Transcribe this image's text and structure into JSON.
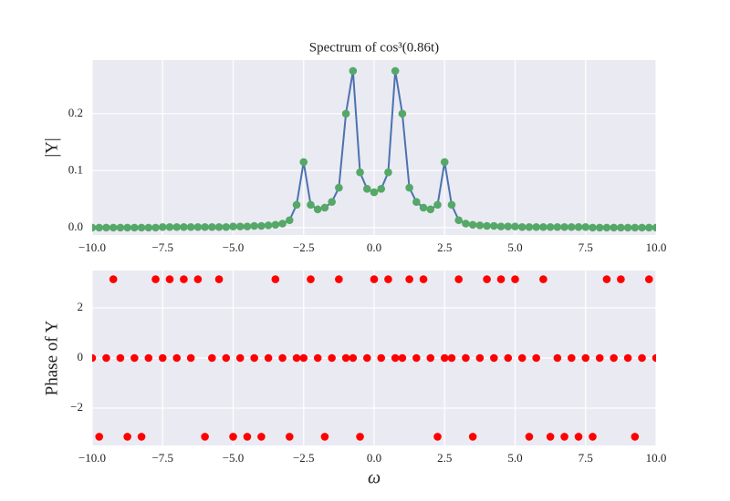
{
  "chart_data": [
    {
      "type": "line",
      "title": "Spectrum of cos³(0.86t)",
      "y_label": "|Y|",
      "x": [
        -10,
        -9.75,
        -9.5,
        -9.25,
        -9,
        -8.75,
        -8.5,
        -8.25,
        -8,
        -7.75,
        -7.5,
        -7.25,
        -7,
        -6.75,
        -6.5,
        -6.25,
        -6,
        -5.75,
        -5.5,
        -5.25,
        -5,
        -4.75,
        -4.5,
        -4.25,
        -4,
        -3.75,
        -3.5,
        -3.25,
        -3,
        -2.75,
        -2.5,
        -2.25,
        -2,
        -1.75,
        -1.5,
        -1.25,
        -1,
        -0.75,
        -0.5,
        -0.25,
        0,
        0.25,
        0.5,
        0.75,
        1,
        1.25,
        1.5,
        1.75,
        2,
        2.25,
        2.5,
        2.75,
        3,
        3.25,
        3.5,
        3.75,
        4,
        4.25,
        4.5,
        4.75,
        5,
        5.25,
        5.5,
        5.75,
        6,
        6.25,
        6.5,
        6.75,
        7,
        7.25,
        7.5,
        7.75,
        8,
        8.25,
        8.5,
        8.75,
        9,
        9.25,
        9.5,
        9.75,
        10
      ],
      "series": [
        {
          "color": "#4c72b0",
          "marker_color": "#55a868",
          "values": [
            0,
            0,
            0,
            0,
            0,
            0,
            0,
            0,
            0,
            0,
            0.001,
            0.001,
            0.001,
            0.001,
            0.001,
            0.001,
            0.001,
            0.001,
            0.001,
            0.001,
            0.002,
            0.002,
            0.002,
            0.003,
            0.003,
            0.004,
            0.005,
            0.007,
            0.013,
            0.04,
            0.115,
            0.04,
            0.032,
            0.035,
            0.045,
            0.07,
            0.2,
            0.275,
            0.097,
            0.068,
            0.062,
            0.068,
            0.097,
            0.275,
            0.2,
            0.07,
            0.045,
            0.035,
            0.032,
            0.04,
            0.115,
            0.04,
            0.013,
            0.007,
            0.005,
            0.004,
            0.003,
            0.003,
            0.002,
            0.002,
            0.002,
            0.001,
            0.001,
            0.001,
            0.001,
            0.001,
            0.001,
            0.001,
            0.001,
            0.001,
            0.001,
            0,
            0,
            0,
            0,
            0,
            0,
            0,
            0,
            0,
            0
          ]
        }
      ],
      "xlim": [
        -10,
        10
      ],
      "ylim": [
        -0.013,
        0.294
      ],
      "xticks": [
        {
          "value": -10,
          "label": "−10.0"
        },
        {
          "value": -7.5,
          "label": "−7.5"
        },
        {
          "value": -5,
          "label": "−5.0"
        },
        {
          "value": -2.5,
          "label": "−2.5"
        },
        {
          "value": 0,
          "label": "0.0"
        },
        2.5,
        {
          "value": 5,
          "label": "5.0"
        },
        7.5,
        {
          "value": 10,
          "label": "10.0"
        }
      ],
      "yticks": [
        {
          "value": 0,
          "label": "0.0"
        },
        0.1,
        0.2
      ],
      "grid": true
    },
    {
      "type": "scatter",
      "x_label": "ω",
      "y_label": "Phase of Y",
      "x": [
        -10,
        -9.75,
        -9.5,
        -9.25,
        -9,
        -8.75,
        -8.5,
        -8.25,
        -8,
        -7.75,
        -7.5,
        -7.25,
        -7,
        -6.75,
        -6.5,
        -6.25,
        -6,
        -5.75,
        -5.5,
        -5.25,
        -5,
        -4.75,
        -4.5,
        -4.25,
        -4,
        -3.75,
        -3.5,
        -3.25,
        -3,
        -2.75,
        -2.5,
        -2.25,
        -2,
        -1.75,
        -1.5,
        -1.25,
        -1,
        -0.75,
        -0.5,
        -0.25,
        0,
        0.25,
        0.5,
        0.75,
        1,
        1.25,
        1.5,
        1.75,
        2,
        2.25,
        2.5,
        2.75,
        3,
        3.25,
        3.5,
        3.75,
        4,
        4.25,
        4.5,
        4.75,
        5,
        5.25,
        5.5,
        5.75,
        6,
        6.25,
        6.5,
        6.75,
        7,
        7.25,
        7.5,
        7.75,
        8,
        8.25,
        8.5,
        8.75,
        9,
        9.25,
        9.5,
        9.75,
        10
      ],
      "series": [
        {
          "color": "#ff0000",
          "values": [
            0,
            -3.1416,
            0,
            3.1416,
            0,
            -3.1416,
            0,
            -3.1416,
            0,
            3.1416,
            0,
            3.1416,
            0,
            3.1416,
            0,
            3.1416,
            -3.1416,
            0,
            3.1416,
            0,
            -3.1416,
            0,
            -3.1416,
            0,
            -3.1416,
            0,
            3.1416,
            0,
            -3.1416,
            0,
            0,
            3.1416,
            0,
            -3.1416,
            0,
            3.1416,
            0,
            0,
            -3.1416,
            0,
            3.1416,
            0,
            3.1416,
            0,
            0,
            3.1416,
            0,
            3.1416,
            0,
            -3.1416,
            0,
            0,
            3.1416,
            0,
            -3.1416,
            0,
            3.1416,
            0,
            3.1416,
            0,
            3.1416,
            0,
            -3.1416,
            0,
            3.1416,
            -3.1416,
            0,
            -3.1416,
            0,
            -3.1416,
            0,
            -3.1416,
            0,
            3.1416,
            0,
            3.1416,
            0,
            -3.1416,
            0,
            3.1416,
            0
          ]
        }
      ],
      "xlim": [
        -10,
        10
      ],
      "ylim": [
        -3.49,
        3.49
      ],
      "xticks": [
        {
          "value": -10,
          "label": "−10.0"
        },
        {
          "value": -7.5,
          "label": "−7.5"
        },
        {
          "value": -5,
          "label": "−5.0"
        },
        {
          "value": -2.5,
          "label": "−2.5"
        },
        {
          "value": 0,
          "label": "0.0"
        },
        2.5,
        {
          "value": 5,
          "label": "5.0"
        },
        7.5,
        {
          "value": 10,
          "label": "10.0"
        }
      ],
      "yticks": [
        {
          "value": -2,
          "label": "−2"
        },
        0,
        2
      ],
      "grid": true
    }
  ]
}
